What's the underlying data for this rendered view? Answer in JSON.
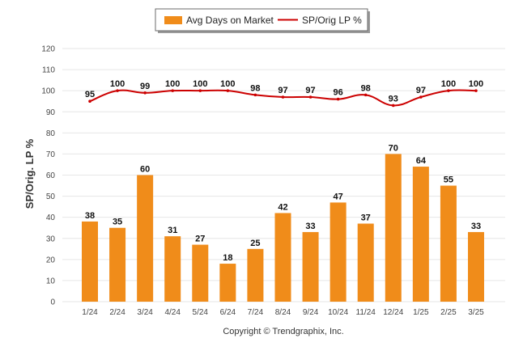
{
  "chart_data": {
    "type": "bar",
    "categories": [
      "1/24",
      "2/24",
      "3/24",
      "4/24",
      "5/24",
      "6/24",
      "7/24",
      "8/24",
      "9/24",
      "10/24",
      "11/24",
      "12/24",
      "1/25",
      "2/25",
      "3/25"
    ],
    "series": [
      {
        "name": "Avg Days on Market",
        "type": "bar",
        "color": "#F08C1A",
        "values": [
          38,
          35,
          60,
          31,
          27,
          18,
          25,
          42,
          33,
          47,
          37,
          70,
          64,
          55,
          33
        ]
      },
      {
        "name": "SP/Orig LP %",
        "type": "line",
        "color": "#CC0000",
        "values": [
          95,
          100,
          99,
          100,
          100,
          100,
          98,
          97,
          97,
          96,
          98,
          93,
          97,
          100,
          100
        ]
      }
    ],
    "ylabel": "SP/Orig. LP %",
    "xlabel": "",
    "ylim": [
      0,
      120
    ],
    "yticks": [
      0,
      10,
      20,
      30,
      40,
      50,
      60,
      70,
      80,
      90,
      100,
      110,
      120
    ],
    "grid": true,
    "legend_position": "top-center"
  },
  "credit": "Copyright © Trendgraphix, Inc."
}
